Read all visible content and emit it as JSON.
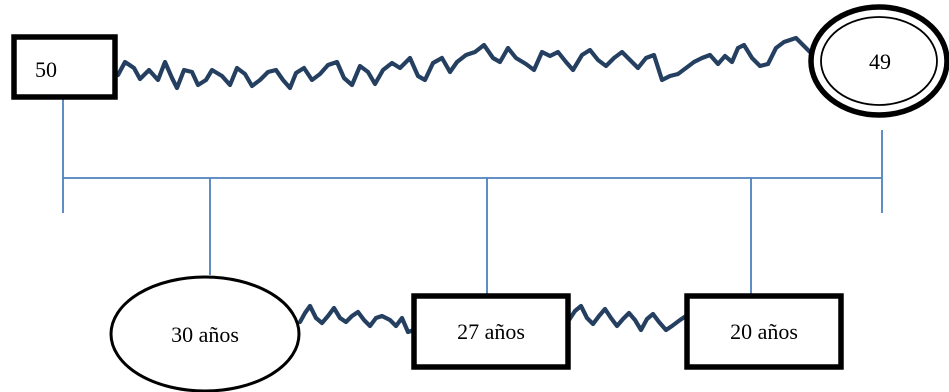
{
  "genogram": {
    "parents": {
      "father": {
        "label": "50",
        "shape": "square"
      },
      "mother": {
        "label": "49",
        "shape": "circle-double",
        "outer_ring": "bold"
      }
    },
    "children": [
      {
        "label": "30 años",
        "shape": "circle"
      },
      {
        "label": "27 años",
        "shape": "square"
      },
      {
        "label": "20 años",
        "shape": "square"
      }
    ],
    "relationship_lines": {
      "parents": "conflictive",
      "children": "conflictive"
    }
  },
  "colors": {
    "conflict_line": "#243f60",
    "descent_line": "#4f81bd",
    "shape_stroke": "#000000",
    "shape_fill": "#ffffff"
  }
}
